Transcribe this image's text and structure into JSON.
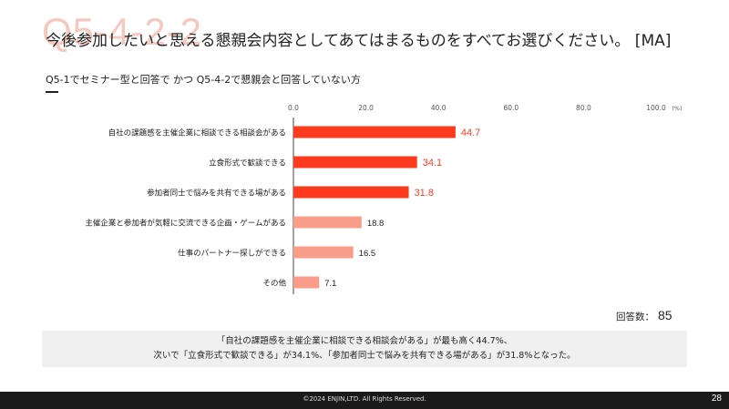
{
  "watermark": "Q5-4-2-2",
  "title": "今後参加したいと思える懇親会内容としてあてはまるものをすべてお選びください。 [MA]",
  "subtitle": "Q5-1でセミナー型と回答で かつ Q5-4-2で懇親会と回答していない方",
  "respondents": {
    "label": "回答数：",
    "value": "85"
  },
  "summary": {
    "line1": "「自社の課題感を主催企業に相談できる相談会がある」が最も高く44.7%、",
    "line2": "次いで「立食形式で歓談できる」が34.1%、「参加者同士で悩みを共有できる場がある」が31.8%となった。"
  },
  "footer": {
    "copyright": "©2024 ENJIN,LTD. All Rights Reserved.",
    "page": "28"
  },
  "colors": {
    "top": "#ff3b1f",
    "rest": "#f99d8a",
    "axis": "#444444",
    "grid_text": "#555555"
  },
  "chart_data": {
    "type": "bar",
    "orientation": "horizontal",
    "categories": [
      "自社の課題感を主催企業に相談できる相談会がある",
      "立食形式で歓談できる",
      "参加者同士で悩みを共有できる場がある",
      "主催企業と参加者が気軽に交流できる企画・ゲームがある",
      "仕事のパートナー探しができる",
      "その他"
    ],
    "values": [
      44.7,
      34.1,
      31.8,
      18.8,
      16.5,
      7.1
    ],
    "value_labels": [
      "44.7",
      "34.1",
      "31.8",
      "18.8",
      "16.5",
      "7.1"
    ],
    "xlim": [
      0,
      100
    ],
    "ticks": [
      "0.0",
      "20.0",
      "40.0",
      "60.0",
      "80.0",
      "100.0"
    ],
    "unit": "(%)",
    "highlight_top_n": 3,
    "grid": false
  }
}
